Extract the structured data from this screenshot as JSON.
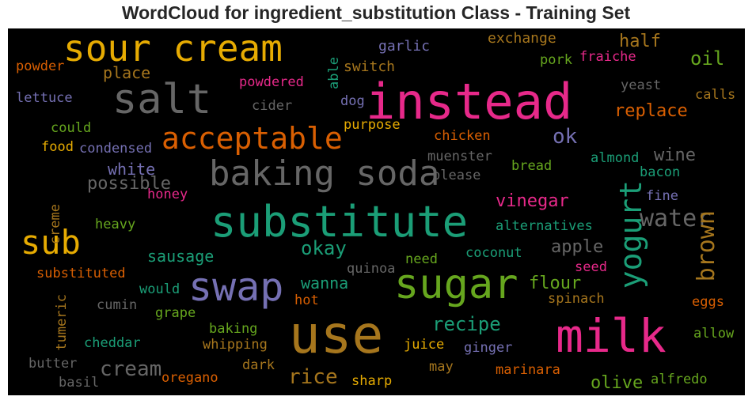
{
  "title": "WordCloud for ingredient_substitution Class - Training Set",
  "colors": {
    "green": "#1b9e77",
    "orange": "#d95f02",
    "purple": "#7570b3",
    "pink": "#e7298a",
    "lime": "#66a61e",
    "yellow": "#e6ab02",
    "brown": "#a6761d",
    "gray": "#666666"
  },
  "words": [
    {
      "text": "sour cream",
      "color": "yellow"
    },
    {
      "text": "instead",
      "color": "pink"
    },
    {
      "text": "salt",
      "color": "gray"
    },
    {
      "text": "acceptable",
      "color": "orange"
    },
    {
      "text": "baking soda",
      "color": "gray"
    },
    {
      "text": "substitute",
      "color": "green"
    },
    {
      "text": "sub",
      "color": "yellow"
    },
    {
      "text": "swap",
      "color": "purple"
    },
    {
      "text": "sugar",
      "color": "lime"
    },
    {
      "text": "yogurt",
      "color": "green"
    },
    {
      "text": "use",
      "color": "brown"
    },
    {
      "text": "milk",
      "color": "pink"
    },
    {
      "text": "water",
      "color": "gray"
    },
    {
      "text": "brown",
      "color": "brown"
    },
    {
      "text": "oil",
      "color": "lime"
    },
    {
      "text": "half",
      "color": "brown"
    },
    {
      "text": "exchange",
      "color": "brown"
    },
    {
      "text": "garlic",
      "color": "purple"
    },
    {
      "text": "switch",
      "color": "brown"
    },
    {
      "text": "pork",
      "color": "lime"
    },
    {
      "text": "fraiche",
      "color": "pink"
    },
    {
      "text": "place",
      "color": "brown"
    },
    {
      "text": "powder",
      "color": "orange"
    },
    {
      "text": "lettuce",
      "color": "purple"
    },
    {
      "text": "powdered",
      "color": "pink"
    },
    {
      "text": "able",
      "color": "green"
    },
    {
      "text": "cider",
      "color": "gray"
    },
    {
      "text": "dog",
      "color": "purple"
    },
    {
      "text": "yeast",
      "color": "gray"
    },
    {
      "text": "calls",
      "color": "brown"
    },
    {
      "text": "replace",
      "color": "orange"
    },
    {
      "text": "could",
      "color": "lime"
    },
    {
      "text": "purpose",
      "color": "yellow"
    },
    {
      "text": "chicken",
      "color": "orange"
    },
    {
      "text": "ok",
      "color": "purple"
    },
    {
      "text": "food",
      "color": "yellow"
    },
    {
      "text": "condensed",
      "color": "purple"
    },
    {
      "text": "muenster",
      "color": "gray"
    },
    {
      "text": "wine",
      "color": "gray"
    },
    {
      "text": "almond",
      "color": "green"
    },
    {
      "text": "white",
      "color": "purple"
    },
    {
      "text": "bread",
      "color": "lime"
    },
    {
      "text": "please",
      "color": "gray"
    },
    {
      "text": "bacon",
      "color": "green"
    },
    {
      "text": "possible",
      "color": "gray"
    },
    {
      "text": "honey",
      "color": "pink"
    },
    {
      "text": "fine",
      "color": "purple"
    },
    {
      "text": "vinegar",
      "color": "pink"
    },
    {
      "text": "creme",
      "color": "brown"
    },
    {
      "text": "heavy",
      "color": "lime"
    },
    {
      "text": "alternatives",
      "color": "green"
    },
    {
      "text": "apple",
      "color": "gray"
    },
    {
      "text": "okay",
      "color": "green"
    },
    {
      "text": "sausage",
      "color": "green"
    },
    {
      "text": "seed",
      "color": "pink"
    },
    {
      "text": "coconut",
      "color": "green"
    },
    {
      "text": "need",
      "color": "lime"
    },
    {
      "text": "substituted",
      "color": "orange"
    },
    {
      "text": "quinoa",
      "color": "gray"
    },
    {
      "text": "wanna",
      "color": "green"
    },
    {
      "text": "flour",
      "color": "lime"
    },
    {
      "text": "would",
      "color": "green"
    },
    {
      "text": "spinach",
      "color": "brown"
    },
    {
      "text": "tumeric",
      "color": "brown"
    },
    {
      "text": "cumin",
      "color": "gray"
    },
    {
      "text": "hot",
      "color": "orange"
    },
    {
      "text": "eggs",
      "color": "orange"
    },
    {
      "text": "grape",
      "color": "lime"
    },
    {
      "text": "recipe",
      "color": "green"
    },
    {
      "text": "baking",
      "color": "lime"
    },
    {
      "text": "allow",
      "color": "lime"
    },
    {
      "text": "cheddar",
      "color": "green"
    },
    {
      "text": "whipping",
      "color": "brown"
    },
    {
      "text": "ginger",
      "color": "purple"
    },
    {
      "text": "juice",
      "color": "yellow"
    },
    {
      "text": "butter",
      "color": "gray"
    },
    {
      "text": "cream",
      "color": "gray"
    },
    {
      "text": "dark",
      "color": "brown"
    },
    {
      "text": "may",
      "color": "brown"
    },
    {
      "text": "marinara",
      "color": "orange"
    },
    {
      "text": "rice",
      "color": "brown"
    },
    {
      "text": "olive",
      "color": "lime"
    },
    {
      "text": "alfredo",
      "color": "lime"
    },
    {
      "text": "oregano",
      "color": "orange"
    },
    {
      "text": "basil",
      "color": "gray"
    },
    {
      "text": "sharp",
      "color": "yellow"
    }
  ]
}
